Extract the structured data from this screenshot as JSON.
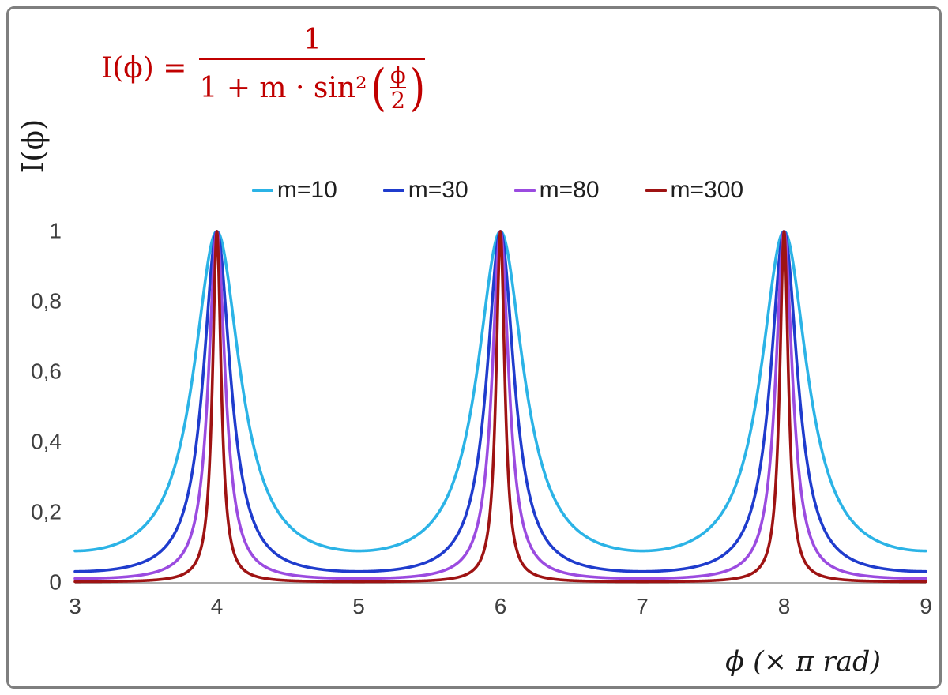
{
  "figure": {
    "background": "#ffffff",
    "border_color": "#7f7f7f"
  },
  "formula": {
    "lhs": "I(ϕ) =",
    "numerator": "1",
    "den_prefix": "1 + m · sin²",
    "den_inner_num": "ϕ",
    "den_inner_den": "2",
    "color": "#c00000"
  },
  "chart_data": {
    "type": "line",
    "title": "",
    "function": "I(phi) = 1 / (1 + m * sin^2(phi/2)), x axis in units of pi rad",
    "xlabel": "ϕ  (× π rad)",
    "ylabel": "I(ϕ)",
    "xlim": [
      3,
      9
    ],
    "ylim": [
      0,
      1
    ],
    "x_ticks": [
      3,
      4,
      5,
      6,
      7,
      8,
      9
    ],
    "y_ticks": [
      0,
      0.2,
      0.4,
      0.6,
      0.8,
      1
    ],
    "y_tick_labels": [
      "0",
      "0,2",
      "0,4",
      "0,6",
      "0,8",
      "1"
    ],
    "peaks_at_x": [
      4,
      6,
      8
    ],
    "peak_value": 1,
    "grid": false,
    "legend_position": "top-center",
    "axis_color": "#ababab",
    "tick_label_color": "#3f3f3f",
    "series": [
      {
        "name": "m=10",
        "m": 10,
        "color": "#2bb3e6"
      },
      {
        "name": "m=30",
        "m": 30,
        "color": "#1f3ccd"
      },
      {
        "name": "m=80",
        "m": 80,
        "color": "#9b4be0"
      },
      {
        "name": "m=300",
        "m": 300,
        "color": "#9e1313"
      }
    ]
  }
}
